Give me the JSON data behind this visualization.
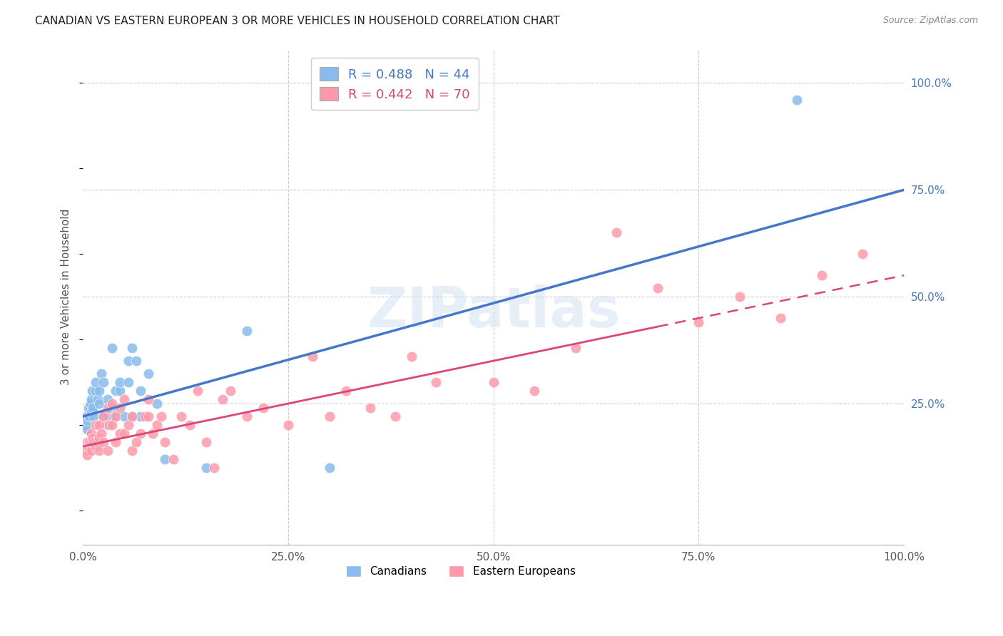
{
  "title": "CANADIAN VS EASTERN EUROPEAN 3 OR MORE VEHICLES IN HOUSEHOLD CORRELATION CHART",
  "source": "Source: ZipAtlas.com",
  "ylabel": "3 or more Vehicles in Household",
  "xlim": [
    0,
    100
  ],
  "ylim": [
    -8,
    108
  ],
  "xtick_values": [
    0,
    25,
    50,
    75,
    100
  ],
  "xticklabels": [
    "0.0%",
    "25.0%",
    "50.0%",
    "75.0%",
    "100.0%"
  ],
  "ytick_right_labels": [
    "25.0%",
    "50.0%",
    "75.0%",
    "100.0%"
  ],
  "ytick_right_values": [
    25,
    50,
    75,
    100
  ],
  "legend_r1": "R = 0.488",
  "legend_n1": "N = 44",
  "legend_r2": "R = 0.442",
  "legend_n2": "N = 70",
  "canadian_color": "#88bbee",
  "eastern_color": "#ff99aa",
  "canadian_line_color": "#4477cc",
  "eastern_line_color": "#dd4477",
  "watermark": "ZIPatlas",
  "canadians_label": "Canadians",
  "eastern_label": "Eastern Europeans",
  "canadian_trend_x0": 0,
  "canadian_trend_y0": 22,
  "canadian_trend_x1": 100,
  "canadian_trend_y1": 75,
  "eastern_trend_x0": 0,
  "eastern_trend_y0": 15,
  "eastern_trend_x1": 100,
  "eastern_trend_y1": 55,
  "canadian_x": [
    0.3,
    0.4,
    0.5,
    0.6,
    0.7,
    0.8,
    0.9,
    1.0,
    1.0,
    1.1,
    1.2,
    1.3,
    1.5,
    1.5,
    1.8,
    2.0,
    2.0,
    2.2,
    2.5,
    2.5,
    3.0,
    3.0,
    3.0,
    3.5,
    3.5,
    4.0,
    4.0,
    4.5,
    4.5,
    5.0,
    5.5,
    5.5,
    6.0,
    6.0,
    6.5,
    7.0,
    7.0,
    8.0,
    9.0,
    10.0,
    15.0,
    20.0,
    30.0,
    87.0
  ],
  "canadian_y": [
    20,
    22,
    19,
    21,
    24,
    22,
    25,
    23,
    26,
    28,
    24,
    22,
    28,
    30,
    26,
    25,
    28,
    32,
    22,
    30,
    20,
    22,
    26,
    24,
    38,
    22,
    28,
    28,
    30,
    22,
    30,
    35,
    22,
    38,
    35,
    22,
    28,
    32,
    25,
    12,
    10,
    42,
    10,
    96
  ],
  "eastern_x": [
    0.3,
    0.5,
    0.5,
    0.7,
    0.8,
    1.0,
    1.0,
    1.0,
    1.2,
    1.3,
    1.5,
    1.5,
    1.7,
    2.0,
    2.0,
    2.0,
    2.2,
    2.5,
    2.5,
    3.0,
    3.0,
    3.2,
    3.5,
    3.5,
    4.0,
    4.0,
    4.5,
    4.5,
    5.0,
    5.0,
    5.5,
    6.0,
    6.0,
    6.5,
    7.0,
    7.5,
    8.0,
    8.0,
    8.5,
    9.0,
    9.5,
    10.0,
    11.0,
    12.0,
    13.0,
    14.0,
    15.0,
    16.0,
    17.0,
    18.0,
    20.0,
    22.0,
    25.0,
    28.0,
    30.0,
    32.0,
    35.0,
    38.0,
    40.0,
    43.0,
    50.0,
    55.0,
    60.0,
    65.0,
    70.0,
    75.0,
    80.0,
    85.0,
    90.0,
    95.0
  ],
  "eastern_y": [
    14,
    13,
    16,
    15,
    16,
    14,
    16,
    18,
    17,
    16,
    15,
    20,
    16,
    14,
    17,
    20,
    18,
    16,
    22,
    14,
    24,
    20,
    20,
    25,
    16,
    22,
    18,
    24,
    18,
    26,
    20,
    14,
    22,
    16,
    18,
    22,
    22,
    26,
    18,
    20,
    22,
    16,
    12,
    22,
    20,
    28,
    16,
    10,
    26,
    28,
    22,
    24,
    20,
    36,
    22,
    28,
    24,
    22,
    36,
    30,
    30,
    28,
    38,
    65,
    52,
    44,
    50,
    45,
    55,
    60
  ]
}
